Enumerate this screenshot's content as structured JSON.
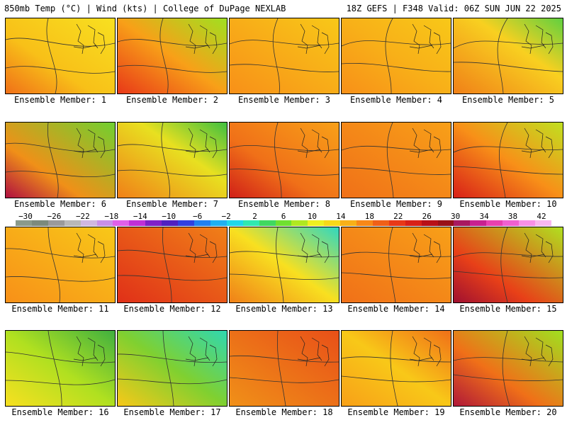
{
  "header": {
    "left": "850mb Temp (°C) | Wind (kts) | College of DuPage NEXLAB",
    "right": "18Z GEFS | F348 Valid: 06Z SUN JUN 22 2025"
  },
  "panels": [
    {
      "caption": "Ensemble Member: 1",
      "style": "warm-yellow"
    },
    {
      "caption": "Ensemble Member: 2",
      "style": "warm-west-green-ne"
    },
    {
      "caption": "Ensemble Member: 3",
      "style": "orange-yellow"
    },
    {
      "caption": "Ensemble Member: 4",
      "style": "orange-low"
    },
    {
      "caption": "Ensemble Member: 5",
      "style": "orange-green-north"
    },
    {
      "caption": "Ensemble Member: 6",
      "style": "green-hotspot"
    },
    {
      "caption": "Ensemble Member: 7",
      "style": "green-north"
    },
    {
      "caption": "Ensemble Member: 8",
      "style": "red-west"
    },
    {
      "caption": "Ensemble Member: 9",
      "style": "orange-uniform"
    },
    {
      "caption": "Ensemble Member: 10",
      "style": "red-west-green-ne"
    },
    {
      "caption": "Ensemble Member: 11",
      "style": "orange-yellow"
    },
    {
      "caption": "Ensemble Member: 12",
      "style": "red-orange"
    },
    {
      "caption": "Ensemble Member: 13",
      "style": "cyan-north"
    },
    {
      "caption": "Ensemble Member: 14",
      "style": "orange-uniform"
    },
    {
      "caption": "Ensemble Member: 15",
      "style": "red-hotspot"
    },
    {
      "caption": "Ensemble Member: 16",
      "style": "green-yellow"
    },
    {
      "caption": "Ensemble Member: 17",
      "style": "green-cyan"
    },
    {
      "caption": "Ensemble Member: 18",
      "style": "orange-red"
    },
    {
      "caption": "Ensemble Member: 19",
      "style": "orange-yellow-low"
    },
    {
      "caption": "Ensemble Member: 20",
      "style": "red-hotspot-green"
    }
  ],
  "colorbar": {
    "labels": [
      "−30",
      "−26",
      "−22",
      "−18",
      "−14",
      "−10",
      "−6",
      "−2",
      "2",
      "6",
      "10",
      "14",
      "18",
      "22",
      "26",
      "30",
      "34",
      "38",
      "42"
    ],
    "colors": [
      "#8a9a8a",
      "#7c8a7c",
      "#9a9a9a",
      "#b8b8b8",
      "#d0b8e0",
      "#c890e8",
      "#e060e8",
      "#c030d8",
      "#8020c8",
      "#5020c0",
      "#3040e0",
      "#2080f0",
      "#20b0f0",
      "#20d8e8",
      "#30e8b0",
      "#40d860",
      "#70e030",
      "#b0e820",
      "#f0f020",
      "#f8d818",
      "#f8b018",
      "#f88818",
      "#f06018",
      "#e83818",
      "#d82018",
      "#b81018",
      "#981018",
      "#a81860",
      "#c82090",
      "#e840b0",
      "#f060d0",
      "#f890e8",
      "#f8b8f0"
    ]
  }
}
